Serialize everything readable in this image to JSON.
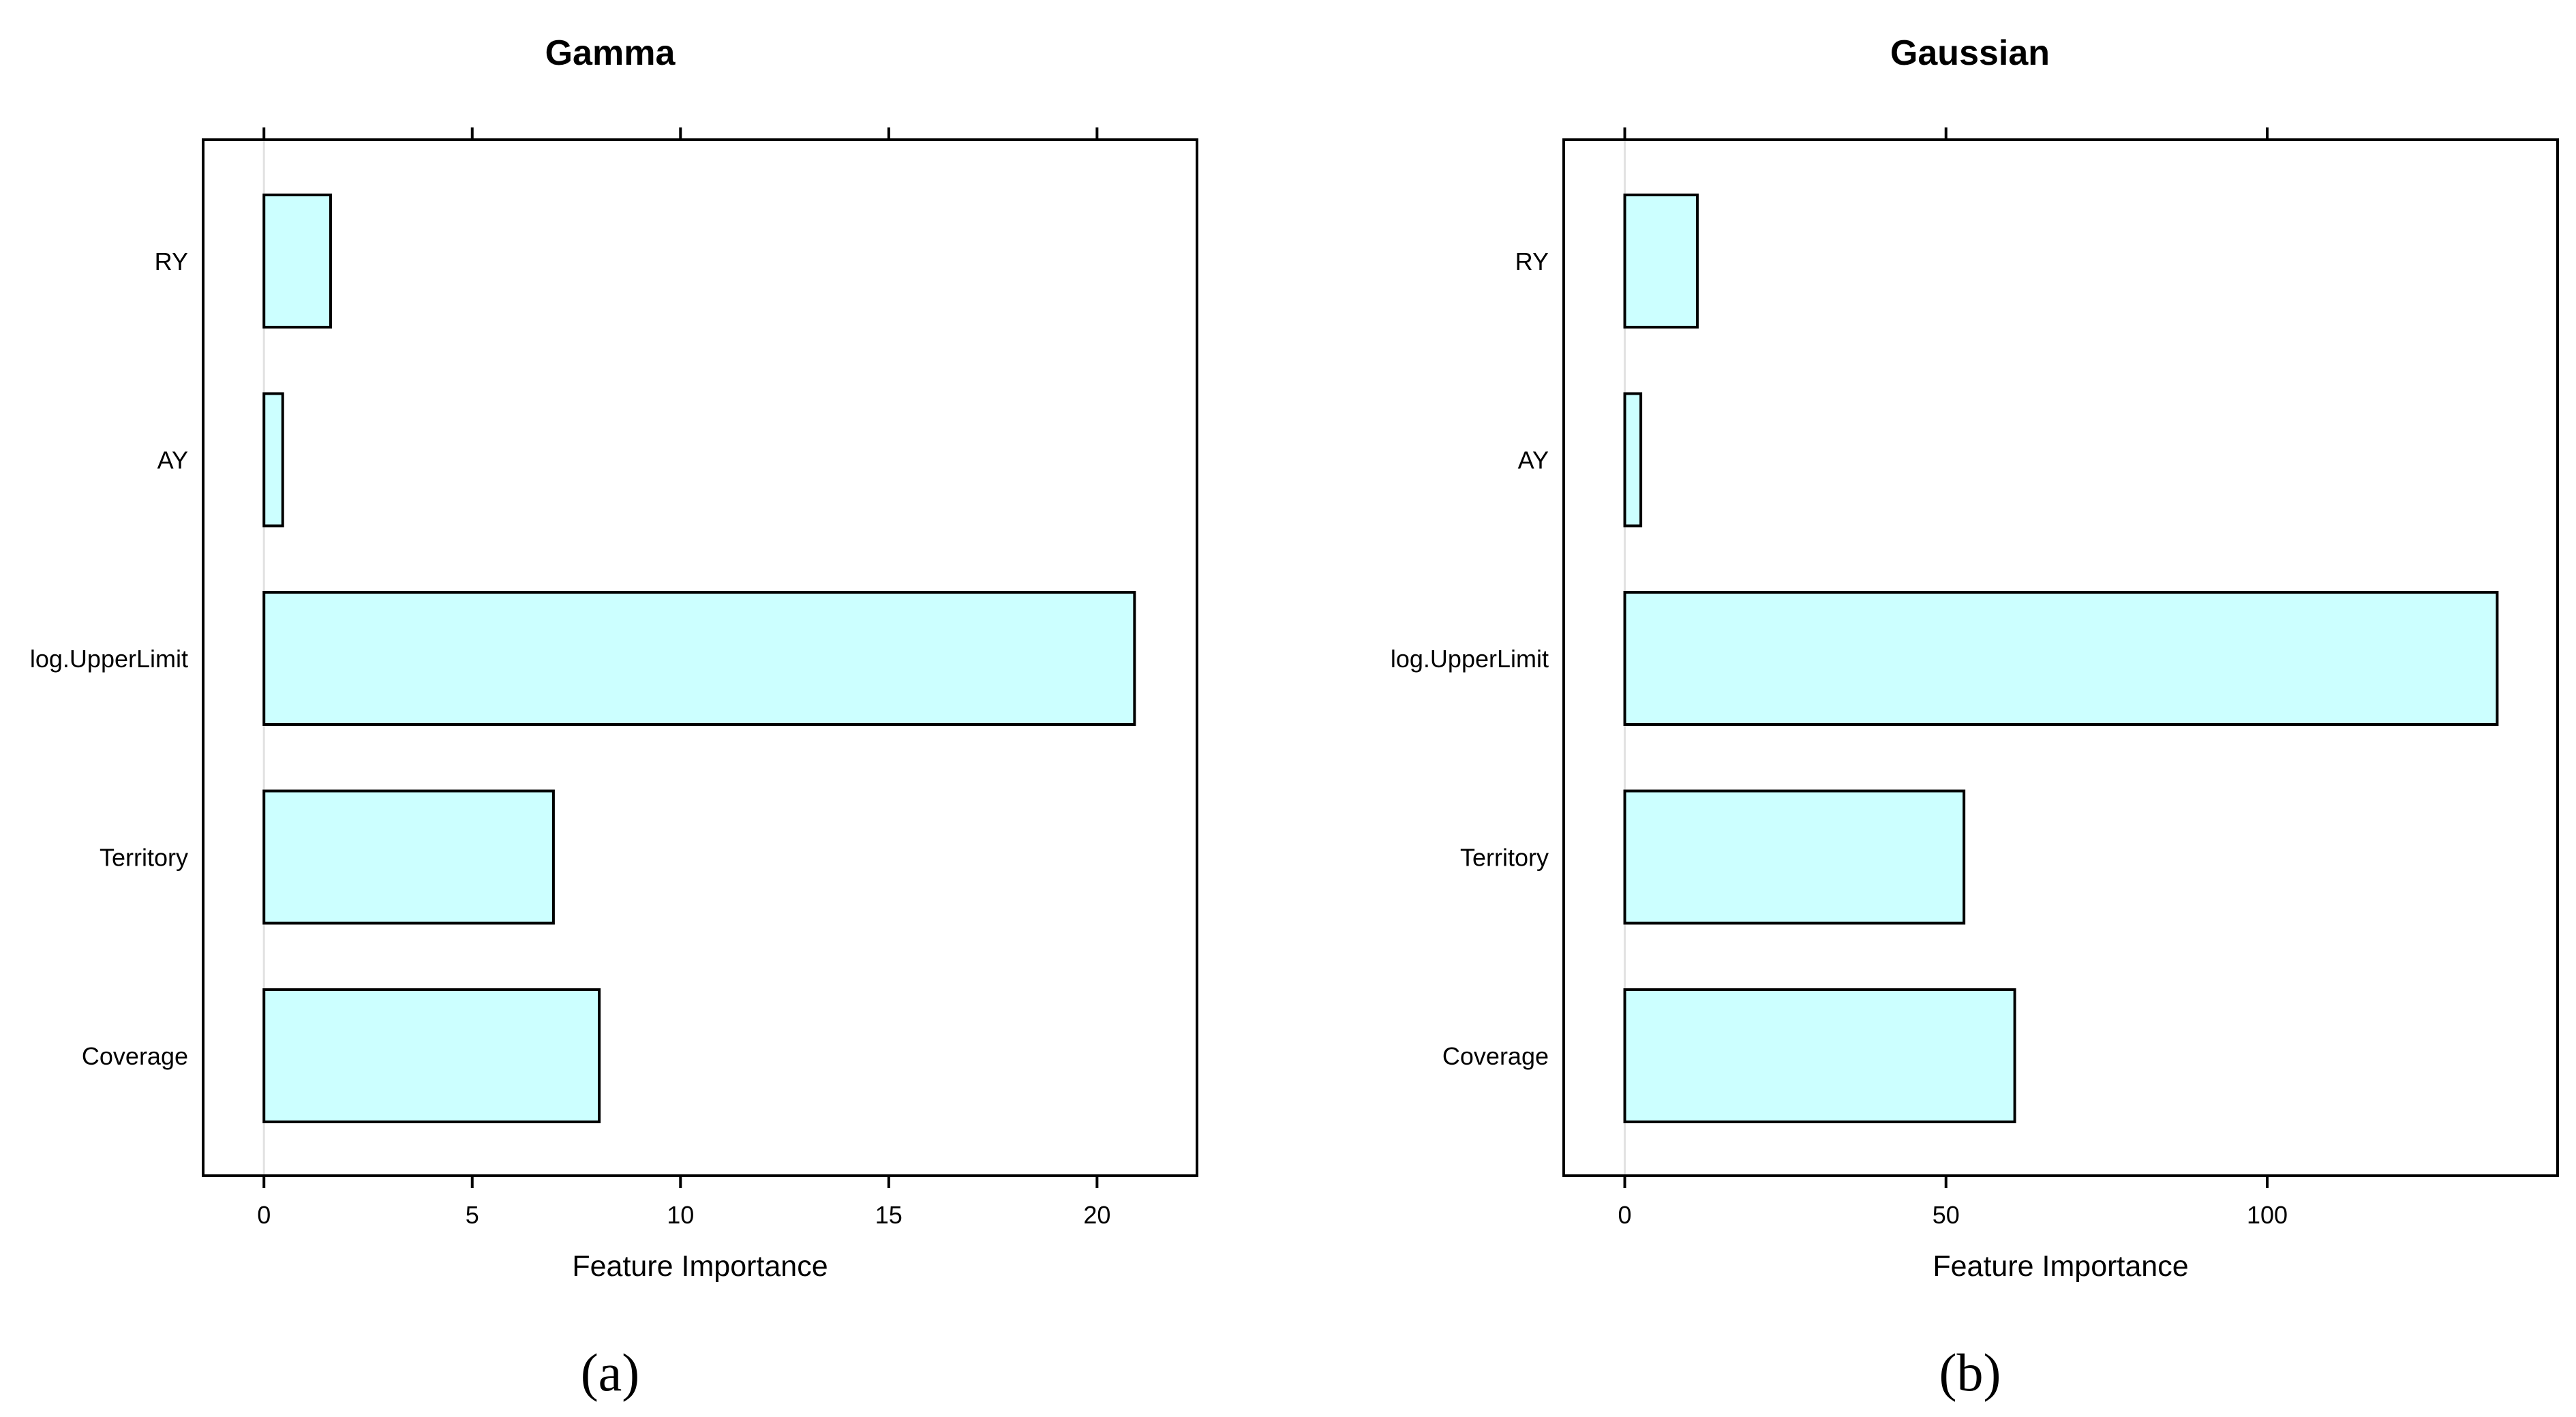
{
  "chart_data": [
    {
      "type": "bar",
      "orientation": "horizontal",
      "title": "Gamma",
      "xlabel": "Feature Importance",
      "ylabel": "",
      "categories": [
        "RY",
        "AY",
        "log.UpperLimit",
        "Territory",
        "Coverage"
      ],
      "values": [
        1.6,
        0.45,
        20.9,
        6.95,
        8.05
      ],
      "xlim": [
        -1.46,
        22.4
      ],
      "xticks": [
        0,
        5,
        10,
        15,
        20
      ],
      "panel_label": "(a)",
      "colors": {
        "bar_fill": "#ccffff",
        "bar_stroke": "#000000",
        "zero_line": "#e2e2e2"
      }
    },
    {
      "type": "bar",
      "orientation": "horizontal",
      "title": "Gaussian",
      "xlabel": "Feature Importance",
      "ylabel": "",
      "categories": [
        "RY",
        "AY",
        "log.UpperLimit",
        "Territory",
        "Coverage"
      ],
      "values": [
        11.3,
        2.5,
        135.8,
        52.8,
        60.7
      ],
      "xlim": [
        -9.5,
        145.2
      ],
      "xticks": [
        0,
        50,
        100
      ],
      "panel_label": "(b)",
      "colors": {
        "bar_fill": "#ccffff",
        "bar_stroke": "#000000",
        "zero_line": "#e2e2e2"
      }
    }
  ]
}
